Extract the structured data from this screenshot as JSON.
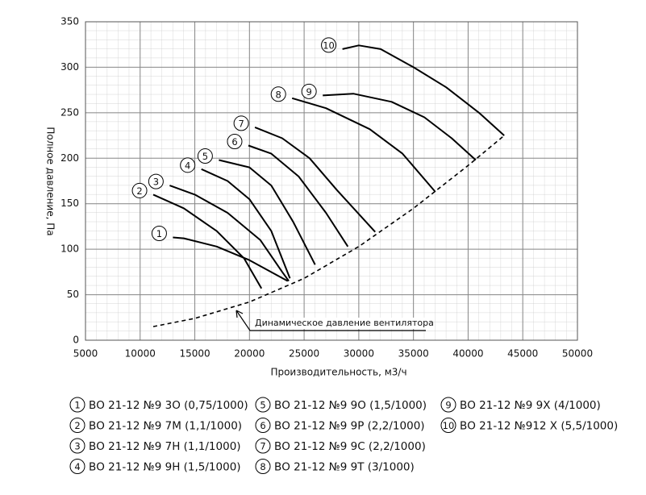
{
  "chart_data": {
    "type": "line",
    "xlabel": "Производительность, м3/ч",
    "ylabel": "Полное давление, Па",
    "xlim": [
      5000,
      50000
    ],
    "xticks": [
      5000,
      10000,
      15000,
      20000,
      25000,
      30000,
      35000,
      40000,
      45000,
      50000
    ],
    "ylim": [
      0,
      350
    ],
    "yticks": [
      0,
      50,
      100,
      150,
      200,
      250,
      300,
      350
    ],
    "grid": true,
    "series": [
      {
        "name": "ВО 21-12 №9 3О (0,75/1000)",
        "label": "1",
        "color": "#000000",
        "x": [
          13000,
          14000,
          17000,
          20000,
          23500
        ],
        "values": [
          113,
          112,
          103,
          88,
          65
        ]
      },
      {
        "name": "ВО 21-12 №9 7М (1,1/1000)",
        "label": "2",
        "color": "#000000",
        "x": [
          11200,
          14000,
          17000,
          19500,
          21100
        ],
        "values": [
          160,
          145,
          120,
          90,
          57
        ]
      },
      {
        "name": "ВО 21-12 №9 7Н (1,1/1000)",
        "label": "3",
        "color": "#000000",
        "x": [
          12700,
          15000,
          18000,
          21000,
          23000,
          23600
        ],
        "values": [
          170,
          160,
          140,
          110,
          75,
          65
        ]
      },
      {
        "name": "ВО 21-12 №9 9Н (1,5/1000)",
        "label": "4",
        "color": "#000000",
        "x": [
          15600,
          18000,
          20000,
          22000,
          23700
        ],
        "values": [
          188,
          175,
          155,
          120,
          68
        ]
      },
      {
        "name": "ВО 21-12 №9 9О (1,5/1000)",
        "label": "5",
        "color": "#000000",
        "x": [
          17200,
          20000,
          22000,
          24000,
          26000
        ],
        "values": [
          198,
          190,
          170,
          130,
          83
        ]
      },
      {
        "name": "ВО 21-12 №9 9Р (2,2/1000)",
        "label": "6",
        "color": "#000000",
        "x": [
          19900,
          22000,
          24500,
          27000,
          29000
        ],
        "values": [
          214,
          205,
          180,
          140,
          103
        ]
      },
      {
        "name": "ВО 21-12 №9 9С (2,2/1000)",
        "label": "7",
        "color": "#000000",
        "x": [
          20500,
          23000,
          25500,
          28000,
          31500
        ],
        "values": [
          234,
          222,
          200,
          165,
          119
        ]
      },
      {
        "name": "ВО 21-12 №9 9Т (3/1000)",
        "label": "8",
        "color": "#000000",
        "x": [
          23900,
          27000,
          31000,
          34000,
          37000
        ],
        "values": [
          266,
          255,
          232,
          205,
          163
        ]
      },
      {
        "name": "ВО 21-12 №9 9Х (4/1000)",
        "label": "9",
        "color": "#000000",
        "x": [
          26700,
          29500,
          33000,
          36000,
          38500,
          40700
        ],
        "values": [
          269,
          271,
          262,
          245,
          222,
          198
        ]
      },
      {
        "name": "ВО 21-12 №912 Х (5,5/1000)",
        "label": "10",
        "color": "#000000",
        "x": [
          28500,
          30000,
          32000,
          35000,
          38000,
          41000,
          43300
        ],
        "values": [
          320,
          324,
          320,
          300,
          278,
          250,
          225
        ]
      }
    ],
    "annotation": {
      "text": "Динамическое давление вентилятора",
      "color": "#000000",
      "style": "dashed",
      "x": [
        11200,
        15000,
        20000,
        25000,
        30000,
        35000,
        40000,
        43300
      ],
      "values": [
        15,
        24,
        42,
        68,
        103,
        145,
        192,
        225
      ]
    }
  }
}
